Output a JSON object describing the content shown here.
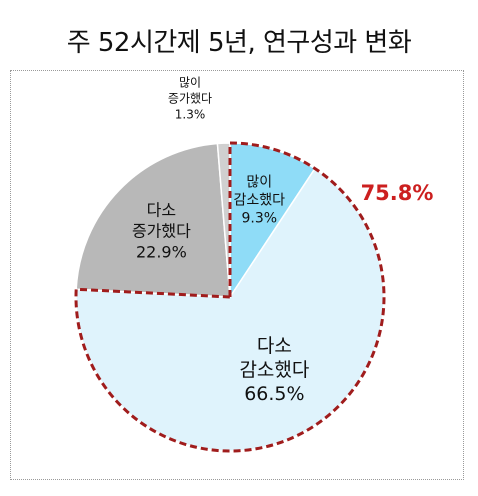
{
  "title": "주 52시간제 5년, 연구성과 변화",
  "chart_data": {
    "type": "pie",
    "title": "주 52시간제 5년, 연구성과 변화",
    "slices": [
      {
        "label_lines": [
          "많이",
          "감소했다"
        ],
        "value_text": "9.3%",
        "value": 9.3,
        "color": "#8fdcf7"
      },
      {
        "label_lines": [
          "다소",
          "감소했다"
        ],
        "value_text": "66.5%",
        "value": 66.5,
        "color": "#dff3fc"
      },
      {
        "label_lines": [
          "다소",
          "증가했다"
        ],
        "value_text": "22.9%",
        "value": 22.9,
        "color": "#b8b8b8"
      },
      {
        "label_lines": [
          "많이",
          "증가했다"
        ],
        "value_text": "1.3%",
        "value": 1.3,
        "color": "#d0d0d0"
      }
    ],
    "group_annotation": {
      "text": "75.8%",
      "value": 75.8,
      "color": "#cc1f1f",
      "outline_color": "#a01c1c"
    }
  }
}
